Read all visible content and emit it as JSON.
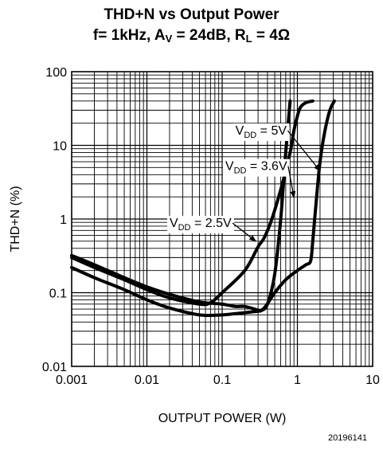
{
  "chart_data": {
    "type": "line",
    "title_main": "THD+N vs Output Power",
    "cond_f": "f= 1kHz, A",
    "cond_av_sub": "V",
    "cond_av": " = 24dB, R",
    "cond_rl_sub": "L",
    "cond_rl": " = 4Ω",
    "xlabel": "OUTPUT POWER (W)",
    "ylabel": "THD+N (%)",
    "xscale": "log",
    "yscale": "log",
    "xlim": [
      0.001,
      10
    ],
    "ylim": [
      0.01,
      100
    ],
    "x_ticks": [
      {
        "value": 0.001,
        "label": "0.001"
      },
      {
        "value": 0.01,
        "label": "0.01"
      },
      {
        "value": 0.1,
        "label": "0.1"
      },
      {
        "value": 1,
        "label": "1"
      },
      {
        "value": 10,
        "label": "10"
      }
    ],
    "y_ticks": [
      {
        "value": 0.01,
        "label": "0.01"
      },
      {
        "value": 0.1,
        "label": "0.1"
      },
      {
        "value": 1,
        "label": "1"
      },
      {
        "value": 10,
        "label": "10"
      },
      {
        "value": 100,
        "label": "100"
      }
    ],
    "grid": true,
    "series": [
      {
        "name": "V_DD = 2.5V",
        "x": [
          0.001,
          0.002,
          0.005,
          0.01,
          0.02,
          0.05,
          0.1,
          0.15,
          0.2,
          0.3,
          0.33,
          0.4,
          0.5,
          0.6,
          0.7,
          0.8
        ],
        "y": [
          0.32,
          0.24,
          0.16,
          0.12,
          0.095,
          0.075,
          0.07,
          0.065,
          0.065,
          0.058,
          0.057,
          0.07,
          0.18,
          1.0,
          8.0,
          40.0
        ]
      },
      {
        "name": "V_DD = 3.6V",
        "x": [
          0.001,
          0.002,
          0.005,
          0.01,
          0.02,
          0.05,
          0.07,
          0.1,
          0.2,
          0.3,
          0.36,
          0.45,
          0.6,
          0.8,
          0.9,
          1.0,
          1.1,
          1.3,
          1.6
        ],
        "y": [
          0.3,
          0.22,
          0.15,
          0.11,
          0.085,
          0.07,
          0.073,
          0.1,
          0.2,
          0.42,
          0.55,
          0.95,
          2.5,
          8.0,
          16.0,
          25.0,
          33.0,
          38.0,
          40.0
        ]
      },
      {
        "name": "V_DD = 5V",
        "x": [
          0.001,
          0.002,
          0.005,
          0.01,
          0.02,
          0.05,
          0.1,
          0.15,
          0.25,
          0.35,
          0.5,
          0.7,
          1.0,
          1.3,
          1.5,
          1.6,
          1.8,
          2.0,
          2.3,
          2.7,
          3.1
        ],
        "y": [
          0.22,
          0.16,
          0.11,
          0.08,
          0.062,
          0.05,
          0.05,
          0.052,
          0.055,
          0.06,
          0.1,
          0.15,
          0.2,
          0.24,
          0.27,
          0.5,
          2.0,
          6.0,
          15.0,
          30.0,
          40.0
        ]
      }
    ],
    "annotations": [
      {
        "prefix": "V",
        "sub": "DD",
        "suffix": " = 5V",
        "x_text": 0.15,
        "y_text": 14,
        "x_arrow": 2.0,
        "y_arrow": 4.5
      },
      {
        "prefix": "V",
        "sub": "DD",
        "suffix": " = 3.6V",
        "x_text": 0.11,
        "y_text": 4.6,
        "x_arrow": 0.9,
        "y_arrow": 1.95
      },
      {
        "prefix": "V",
        "sub": "DD",
        "suffix": " = 2.5V",
        "x_text": 0.02,
        "y_text": 0.78,
        "x_arrow": 0.28,
        "y_arrow": 0.5
      }
    ],
    "figure_id": "20196141"
  }
}
